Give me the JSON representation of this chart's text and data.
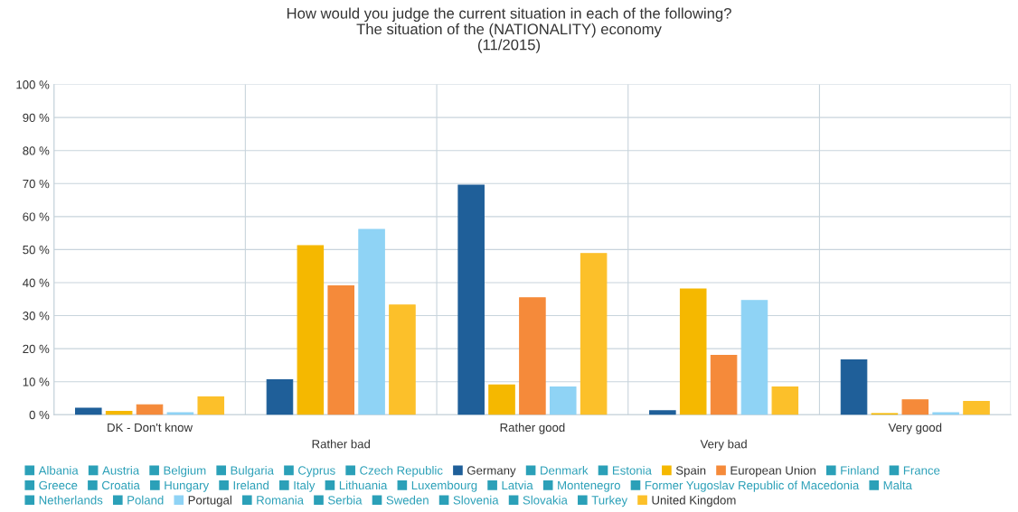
{
  "chart_data": {
    "type": "bar",
    "title": "How would you judge the current situation in each of the following?\nThe situation of the (NATIONALITY) economy\n(11/2015)",
    "categories": [
      "DK - Don't know",
      "Rather bad",
      "Rather good",
      "Very bad",
      "Very good"
    ],
    "ylim": [
      0,
      100
    ],
    "yticks": [
      {
        "value": 0,
        "label": "0 %"
      },
      {
        "value": 10,
        "label": "10 %"
      },
      {
        "value": 20,
        "label": "20 %"
      },
      {
        "value": 30,
        "label": "30 %"
      },
      {
        "value": 40,
        "label": "40 %"
      },
      {
        "value": 50,
        "label": "50 %"
      },
      {
        "value": 60,
        "label": "60 %"
      },
      {
        "value": 70,
        "label": "70 %"
      },
      {
        "value": 80,
        "label": "80 %"
      },
      {
        "value": 90,
        "label": "90 %"
      },
      {
        "value": 100,
        "label": "100 %"
      }
    ],
    "grid": true,
    "legend": "bottom",
    "series": [
      {
        "name": "Albania",
        "color": "#2ba0b8",
        "values": [
          null,
          null,
          null,
          null,
          null
        ]
      },
      {
        "name": "Austria",
        "color": "#2ba0b8",
        "values": [
          null,
          null,
          null,
          null,
          null
        ]
      },
      {
        "name": "Belgium",
        "color": "#2ba0b8",
        "values": [
          null,
          null,
          null,
          null,
          null
        ]
      },
      {
        "name": "Bulgaria",
        "color": "#2ba0b8",
        "values": [
          null,
          null,
          null,
          null,
          null
        ]
      },
      {
        "name": "Cyprus",
        "color": "#2ba0b8",
        "values": [
          null,
          null,
          null,
          null,
          null
        ]
      },
      {
        "name": "Czech Republic",
        "color": "#2ba0b8",
        "values": [
          null,
          null,
          null,
          null,
          null
        ]
      },
      {
        "name": "Germany",
        "color": "#1f5f99",
        "values": [
          2,
          10.6,
          69.5,
          1.2,
          16.6
        ]
      },
      {
        "name": "Denmark",
        "color": "#2ba0b8",
        "values": [
          null,
          null,
          null,
          null,
          null
        ]
      },
      {
        "name": "Estonia",
        "color": "#2ba0b8",
        "values": [
          null,
          null,
          null,
          null,
          null
        ]
      },
      {
        "name": "Spain",
        "color": "#f5b800",
        "values": [
          1,
          51.2,
          9,
          38.1,
          0.3
        ]
      },
      {
        "name": "European Union",
        "color": "#f58a3a",
        "values": [
          3,
          39,
          35.4,
          18,
          4.5
        ]
      },
      {
        "name": "Finland",
        "color": "#2ba0b8",
        "values": [
          null,
          null,
          null,
          null,
          null
        ]
      },
      {
        "name": "France",
        "color": "#2ba0b8",
        "values": [
          null,
          null,
          null,
          null,
          null
        ]
      },
      {
        "name": "Greece",
        "color": "#2ba0b8",
        "values": [
          null,
          null,
          null,
          null,
          null
        ]
      },
      {
        "name": "Croatia",
        "color": "#2ba0b8",
        "values": [
          null,
          null,
          null,
          null,
          null
        ]
      },
      {
        "name": "Hungary",
        "color": "#2ba0b8",
        "values": [
          null,
          null,
          null,
          null,
          null
        ]
      },
      {
        "name": "Ireland",
        "color": "#2ba0b8",
        "values": [
          null,
          null,
          null,
          null,
          null
        ]
      },
      {
        "name": "Italy",
        "color": "#2ba0b8",
        "values": [
          null,
          null,
          null,
          null,
          null
        ]
      },
      {
        "name": "Lithuania",
        "color": "#2ba0b8",
        "values": [
          null,
          null,
          null,
          null,
          null
        ]
      },
      {
        "name": "Luxembourg",
        "color": "#2ba0b8",
        "values": [
          null,
          null,
          null,
          null,
          null
        ]
      },
      {
        "name": "Latvia",
        "color": "#2ba0b8",
        "values": [
          null,
          null,
          null,
          null,
          null
        ]
      },
      {
        "name": "Montenegro",
        "color": "#2ba0b8",
        "values": [
          null,
          null,
          null,
          null,
          null
        ]
      },
      {
        "name": "Former Yugoslav Republic of Macedonia",
        "color": "#2ba0b8",
        "values": [
          null,
          null,
          null,
          null,
          null
        ]
      },
      {
        "name": "Malta",
        "color": "#2ba0b8",
        "values": [
          null,
          null,
          null,
          null,
          null
        ]
      },
      {
        "name": "Netherlands",
        "color": "#2ba0b8",
        "values": [
          null,
          null,
          null,
          null,
          null
        ]
      },
      {
        "name": "Poland",
        "color": "#2ba0b8",
        "values": [
          null,
          null,
          null,
          null,
          null
        ]
      },
      {
        "name": "Portugal",
        "color": "#8fd3f5",
        "values": [
          0.6,
          56.1,
          8.4,
          34.6,
          0.6
        ]
      },
      {
        "name": "Romania",
        "color": "#2ba0b8",
        "values": [
          null,
          null,
          null,
          null,
          null
        ]
      },
      {
        "name": "Serbia",
        "color": "#2ba0b8",
        "values": [
          null,
          null,
          null,
          null,
          null
        ]
      },
      {
        "name": "Sweden",
        "color": "#2ba0b8",
        "values": [
          null,
          null,
          null,
          null,
          null
        ]
      },
      {
        "name": "Slovenia",
        "color": "#2ba0b8",
        "values": [
          null,
          null,
          null,
          null,
          null
        ]
      },
      {
        "name": "Slovakia",
        "color": "#2ba0b8",
        "values": [
          null,
          null,
          null,
          null,
          null
        ]
      },
      {
        "name": "Turkey",
        "color": "#2ba0b8",
        "values": [
          null,
          null,
          null,
          null,
          null
        ]
      },
      {
        "name": "United Kingdom",
        "color": "#fcc02a",
        "values": [
          5.4,
          33.2,
          48.8,
          8.4,
          4
        ]
      }
    ]
  }
}
